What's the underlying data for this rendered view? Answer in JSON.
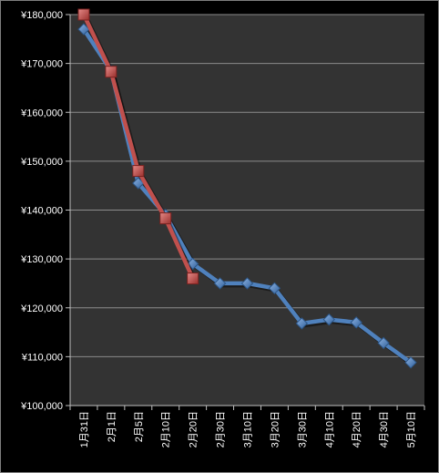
{
  "chart_data": {
    "type": "line",
    "title": "",
    "xlabel": "",
    "ylabel": "",
    "categories": [
      "1月31日",
      "2月1日",
      "2月5日",
      "2月10日",
      "2月20日",
      "2月30日",
      "3月10日",
      "3月20日",
      "3月30日",
      "4月10日",
      "4月20日",
      "4月30日",
      "5月10日"
    ],
    "ylim": [
      100000,
      180000
    ],
    "yticks": [
      100000,
      110000,
      120000,
      130000,
      140000,
      150000,
      160000,
      170000,
      180000
    ],
    "ytick_labels": [
      "¥100,000",
      "¥110,000",
      "¥120,000",
      "¥130,000",
      "¥140,000",
      "¥150,000",
      "¥160,000",
      "¥170,000",
      "¥180,000"
    ],
    "grid": true,
    "legend": "none",
    "background": "#333333",
    "series": [
      {
        "color": "#4f81bd",
        "marker": "diamond",
        "values": [
          177000,
          168500,
          145500,
          139000,
          129000,
          125000,
          125000,
          124000,
          116800,
          117600,
          117000,
          112800,
          108800
        ]
      },
      {
        "color": "#c0504d",
        "marker": "square",
        "values": [
          180000,
          168300,
          148000,
          138300,
          126000,
          null,
          null,
          null,
          null,
          null,
          null,
          null,
          null
        ]
      }
    ]
  }
}
